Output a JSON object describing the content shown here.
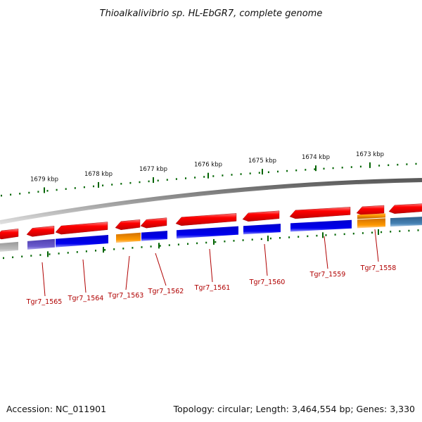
{
  "title": "Thioalkalivibrio sp. HL-EbGR7, complete genome",
  "footer": {
    "accession": "Accession: NC_011901",
    "topology": "Topology: circular; Length: 3,464,554 bp; Genes: 3,330"
  },
  "kbp_labels": [
    "1679 kbp",
    "1678 kbp",
    "1677 kbp",
    "1676 kbp",
    "1675 kbp",
    "1674 kbp",
    "1673 kbp"
  ],
  "gene_labels": [
    "Tgr7_1565",
    "Tgr7_1564",
    "Tgr7_1563",
    "Tgr7_1562",
    "Tgr7_1561",
    "Tgr7_1560",
    "Tgr7_1559",
    "Tgr7_1558"
  ],
  "colors": {
    "red": "#ff0000",
    "blue": "#0000ee",
    "violet": "#6a5acd",
    "orange": "#ff9900",
    "grey": "#bbbbbb",
    "steel": "#4682b4",
    "tick_green": "#006400",
    "label_red": "#b00000",
    "backbone": "#888888"
  }
}
